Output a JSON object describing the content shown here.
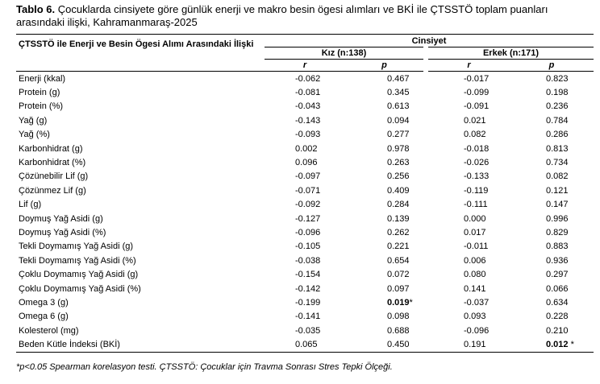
{
  "caption": {
    "label": "Tablo 6.",
    "line1": " Çocuklarda cinsiyete göre günlük enerji ve makro besin ögesi alımları ve BKİ ile ÇTSSTÖ toplam puanları",
    "line2": "arasındaki ilişki, Kahramanmaraş-2025"
  },
  "header": {
    "row_title": "ÇTSSTÖ ile Enerji ve Besin Ögesi Alımı Arasındaki İlişki",
    "group": "Cinsiyet",
    "girls": "Kız (n:138)",
    "boys": "Erkek (n:171)",
    "r": "r",
    "p": "p"
  },
  "rows": [
    {
      "label": "Enerji (kkal)",
      "kr": "-0.062",
      "kp": "0.467",
      "er": "-0.017",
      "ep": "0.823"
    },
    {
      "label": "Protein (g)",
      "kr": "-0.081",
      "kp": "0.345",
      "er": "-0.099",
      "ep": "0.198"
    },
    {
      "label": "Protein (%)",
      "kr": "-0.043",
      "kp": "0.613",
      "er": "-0.091",
      "ep": "0.236"
    },
    {
      "label": "Yağ (g)",
      "kr": "-0.143",
      "kp": "0.094",
      "er": "0.021",
      "ep": "0.784"
    },
    {
      "label": "Yağ (%)",
      "kr": "-0.093",
      "kp": "0.277",
      "er": "0.082",
      "ep": "0.286"
    },
    {
      "label": "Karbonhidrat (g)",
      "kr": "0.002",
      "kp": "0.978",
      "er": "-0.018",
      "ep": "0.813"
    },
    {
      "label": "Karbonhidrat (%)",
      "kr": "0.096",
      "kp": "0.263",
      "er": "-0.026",
      "ep": "0.734"
    },
    {
      "label": "Çözünebilir Lif (g)",
      "kr": "-0.097",
      "kp": "0.256",
      "er": "-0.133",
      "ep": "0.082"
    },
    {
      "label": "Çözünmez Lif (g)",
      "kr": "-0.071",
      "kp": "0.409",
      "er": "-0.119",
      "ep": "0.121"
    },
    {
      "label": "Lif (g)",
      "kr": "-0.092",
      "kp": "0.284",
      "er": "-0.111",
      "ep": "0.147"
    },
    {
      "label": "Doymuş Yağ Asidi (g)",
      "kr": "-0.127",
      "kp": "0.139",
      "er": "0.000",
      "ep": "0.996"
    },
    {
      "label": "Doymuş Yağ Asidi (%)",
      "kr": "-0.096",
      "kp": "0.262",
      "er": "0.017",
      "ep": "0.829"
    },
    {
      "label": "Tekli Doymamış Yağ Asidi (g)",
      "kr": "-0.105",
      "kp": "0.221",
      "er": "-0.011",
      "ep": "0.883"
    },
    {
      "label": "Tekli Doymamış Yağ Asidi (%)",
      "kr": "-0.038",
      "kp": "0.654",
      "er": "0.006",
      "ep": "0.936"
    },
    {
      "label": "Çoklu Doymamış Yağ Asidi (g)",
      "kr": "-0.154",
      "kp": "0.072",
      "er": "0.080",
      "ep": "0.297"
    },
    {
      "label": "Çoklu Doymamış Yağ Asidi (%)",
      "kr": "-0.142",
      "kp": "0.097",
      "er": "0.141",
      "ep": "0.066"
    },
    {
      "label": "Omega 3 (g)",
      "kr": "-0.199",
      "kp": "0.019",
      "kp_mark": "*",
      "er": "-0.037",
      "ep": "0.634"
    },
    {
      "label": "Omega 6 (g)",
      "kr": "-0.141",
      "kp": "0.098",
      "er": "0.093",
      "ep": "0.228"
    },
    {
      "label": "Kolesterol (mg)",
      "kr": "-0.035",
      "kp": "0.688",
      "er": "-0.096",
      "ep": "0.210"
    },
    {
      "label": "Beden Kütle İndeksi (BKİ)",
      "kr": "0.065",
      "kp": "0.450",
      "er": "0.191",
      "ep": "0.012",
      "ep_mark": " *"
    }
  ],
  "footnote": "*p<0.05 Spearman korelasyon testi. ÇTSSTÖ: Çocuklar için Travma Sonrası Stres Tepki Ölçeği."
}
